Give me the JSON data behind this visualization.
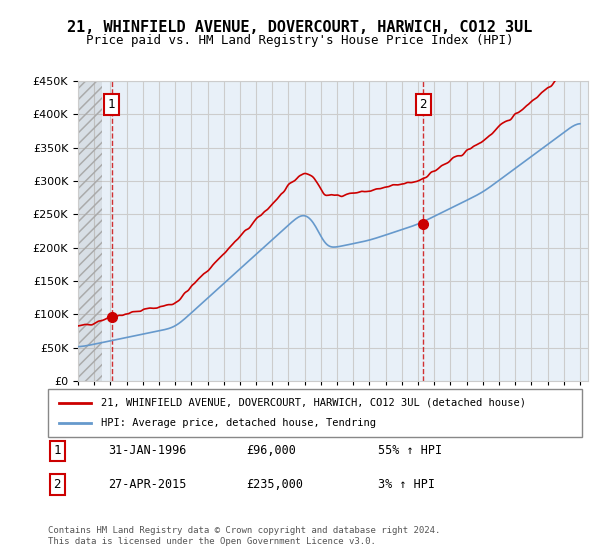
{
  "title": "21, WHINFIELD AVENUE, DOVERCOURT, HARWICH, CO12 3UL",
  "subtitle": "Price paid vs. HM Land Registry's House Price Index (HPI)",
  "legend_line1": "21, WHINFIELD AVENUE, DOVERCOURT, HARWICH, CO12 3UL (detached house)",
  "legend_line2": "HPI: Average price, detached house, Tendring",
  "transaction1_label": "1",
  "transaction1_date": "31-JAN-1996",
  "transaction1_price": "£96,000",
  "transaction1_hpi": "55% ↑ HPI",
  "transaction2_label": "2",
  "transaction2_date": "27-APR-2015",
  "transaction2_price": "£235,000",
  "transaction2_hpi": "3% ↑ HPI",
  "footer": "Contains HM Land Registry data © Crown copyright and database right 2024.\nThis data is licensed under the Open Government Licence v3.0.",
  "price_color": "#cc0000",
  "hpi_color": "#6699cc",
  "dashed_line_color": "#cc0000",
  "marker_color": "#cc0000",
  "background_hatch_color": "#e8e8e8",
  "grid_color": "#cccccc",
  "ylim": [
    0,
    450000
  ],
  "yticks": [
    0,
    50000,
    100000,
    150000,
    200000,
    250000,
    300000,
    350000,
    400000,
    450000
  ],
  "xlabel_start_year": 1994,
  "xlabel_end_year": 2025
}
